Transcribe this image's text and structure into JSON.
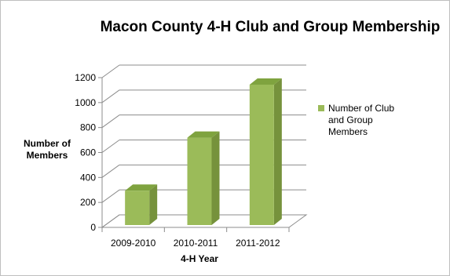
{
  "chart_data": {
    "type": "bar",
    "title": "Macon County 4-H Club and Group Membership",
    "xlabel": "4-H Year",
    "ylabel_lines": [
      "Number of",
      "Members"
    ],
    "categories": [
      "2009-2010",
      "2010-2011",
      "2011-2012"
    ],
    "series": [
      {
        "name_lines": [
          "Number of Club",
          "and Group",
          "Members"
        ],
        "values": [
          275,
          700,
          1125
        ],
        "color": "#9bbb59"
      }
    ],
    "ylim": [
      0,
      1200
    ],
    "yticks": [
      0,
      200,
      400,
      600,
      800,
      1000,
      1200
    ],
    "three_d": true,
    "grid": true,
    "legend": "right"
  }
}
